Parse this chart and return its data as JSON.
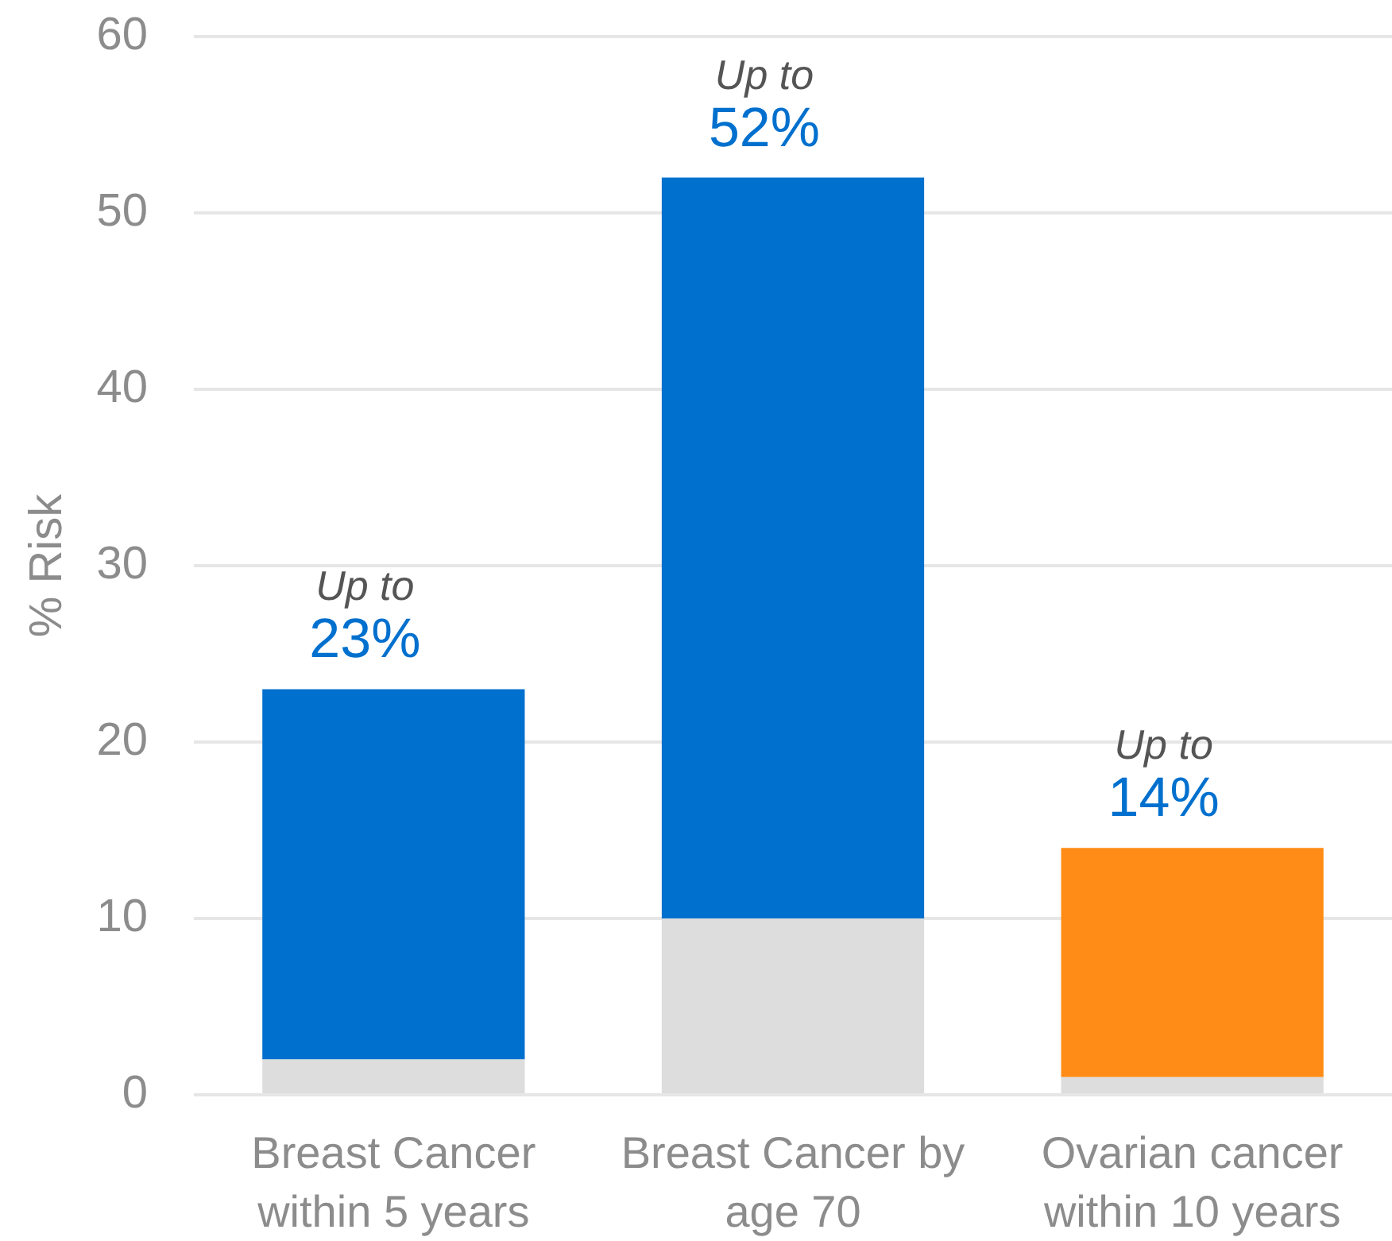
{
  "chart_data": {
    "type": "bar",
    "stacked": true,
    "categories": [
      "Breast Cancer within 5 years",
      "Breast Cancer by age 70",
      "Ovarian cancer within 10 years"
    ],
    "series": [
      {
        "color": "#dcdddc",
        "values": [
          2,
          10,
          1
        ]
      },
      {
        "colors": [
          "#0070ce",
          "#0070ce",
          "#ff8c16"
        ],
        "values": [
          21,
          42,
          13
        ]
      }
    ],
    "ylabel": "% Risk",
    "ylim": [
      0,
      60
    ],
    "yticks": [
      0,
      10,
      20,
      30,
      40,
      50,
      60
    ],
    "grid": "y",
    "totals": [
      "23%",
      "52%",
      "14%"
    ],
    "annotations": [
      "Up to",
      "Up to",
      "Up to"
    ]
  }
}
